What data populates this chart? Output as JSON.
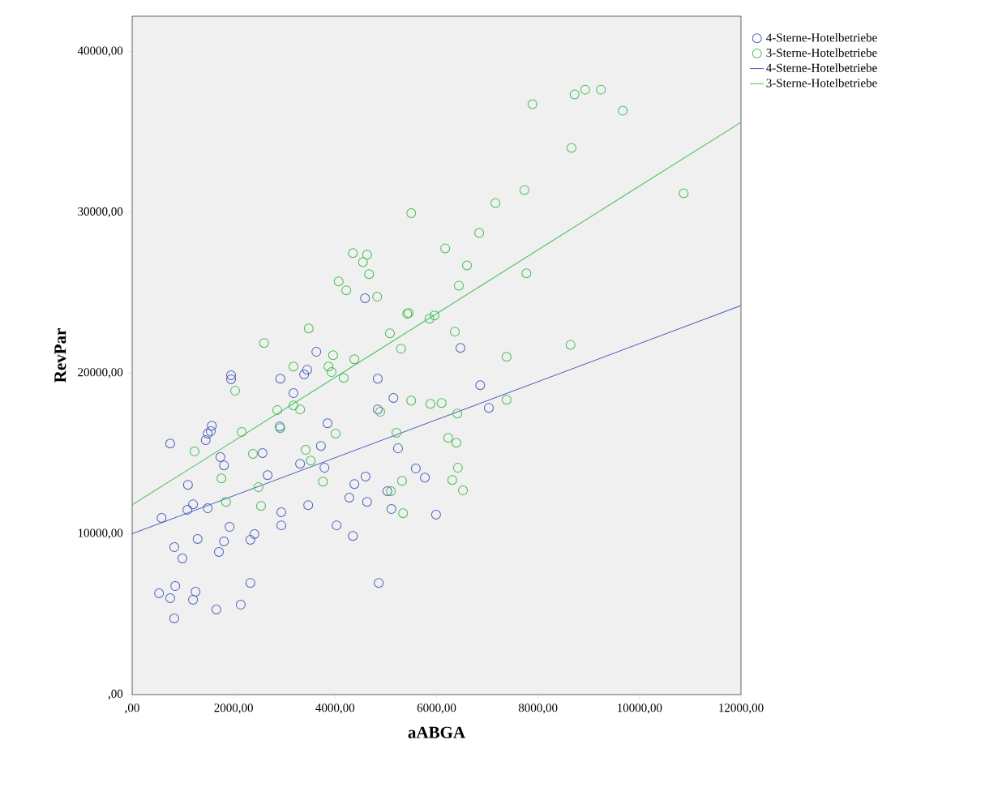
{
  "chart_data": {
    "type": "scatter",
    "xlabel": "aABGA",
    "ylabel": "RevPar",
    "xlim": [
      0,
      12000
    ],
    "ylim": [
      0,
      42200
    ],
    "xticks": [
      {
        "value": 0,
        "label": ",00"
      },
      {
        "value": 2000,
        "label": "2000,00"
      },
      {
        "value": 4000,
        "label": "4000,00"
      },
      {
        "value": 6000,
        "label": "6000,00"
      },
      {
        "value": 8000,
        "label": "8000,00"
      },
      {
        "value": 10000,
        "label": "10000,00"
      },
      {
        "value": 12000,
        "label": "12000,00"
      }
    ],
    "yticks": [
      {
        "value": 0,
        "label": ",00"
      },
      {
        "value": 10000,
        "label": "10000,00"
      },
      {
        "value": 20000,
        "label": "20000,00"
      },
      {
        "value": 30000,
        "label": "30000,00"
      },
      {
        "value": 40000,
        "label": "40000,00"
      }
    ],
    "marker": "circle",
    "legend": "right",
    "series": [
      {
        "name": "4-Sterne-Hotelbetriebe",
        "color": "#4a5ec0",
        "x": [
          3630,
          1950,
          1950,
          2920,
          3390,
          3450,
          3180,
          4840,
          5150,
          4840,
          1570,
          1550,
          1490,
          1450,
          750,
          2910,
          3850,
          2570,
          1740,
          1810,
          3720,
          5240,
          3310,
          3790,
          2670,
          5590,
          5770,
          1100,
          4600,
          4380,
          5030,
          1200,
          1090,
          1490,
          580,
          2940,
          4280,
          4630,
          3470,
          5110,
          5990,
          2940,
          1920,
          4030,
          4350,
          2410,
          2330,
          1810,
          1290,
          830,
          990,
          1710,
          2330,
          4860,
          530,
          850,
          750,
          1250,
          1200,
          1660,
          2140,
          830,
          6470,
          6860,
          7030,
          4590
        ],
        "values": [
          21320,
          19860,
          19610,
          19650,
          19910,
          20210,
          18750,
          19650,
          18450,
          17740,
          16730,
          16380,
          16230,
          15830,
          15620,
          16680,
          16880,
          15020,
          14770,
          14260,
          15470,
          15320,
          14360,
          14110,
          13650,
          14060,
          13500,
          13050,
          13560,
          13100,
          12650,
          11840,
          11490,
          11590,
          10990,
          11340,
          12250,
          11990,
          11790,
          11540,
          11190,
          10530,
          10430,
          10530,
          9870,
          9980,
          9630,
          9530,
          9680,
          9170,
          8470,
          8870,
          6950,
          6950,
          6300,
          6750,
          6000,
          6400,
          5900,
          5290,
          5590,
          4740,
          21570,
          19250,
          17840,
          24650
        ]
      },
      {
        "name": "3-Sterne-Hotelbetriebe",
        "color": "#3fbf4f",
        "x": [
          3480,
          2600,
          5080,
          5300,
          3960,
          3870,
          3930,
          4380,
          3180,
          4170,
          2030,
          2860,
          3180,
          3310,
          5500,
          5880,
          4890,
          2920,
          2160,
          4010,
          5210,
          1230,
          2380,
          3420,
          3520,
          1760,
          2490,
          3760,
          5320,
          5100,
          5340,
          1850,
          2540,
          6840,
          6170,
          6600,
          6440,
          7770,
          4350,
          4630,
          4550,
          4670,
          4070,
          4220,
          4830,
          5450,
          5420,
          5860,
          5960,
          6360,
          7380,
          6100,
          6410,
          7380,
          6230,
          6390,
          6420,
          6310,
          6520,
          7890,
          8720,
          8930,
          9240,
          9670,
          8660,
          7730,
          7160,
          10870,
          8640,
          5500
        ],
        "values": [
          22780,
          21870,
          22470,
          21510,
          21110,
          20410,
          20060,
          20860,
          20410,
          19700,
          18900,
          17690,
          17990,
          17740,
          18290,
          18090,
          17590,
          16580,
          16330,
          16230,
          16280,
          15120,
          14970,
          15220,
          14560,
          13450,
          12900,
          13250,
          13300,
          12650,
          11280,
          11990,
          11740,
          28720,
          27760,
          26700,
          25440,
          26200,
          27460,
          27360,
          26900,
          26150,
          25700,
          25150,
          24750,
          23730,
          23690,
          23380,
          23580,
          22580,
          21010,
          18140,
          17480,
          18340,
          15970,
          15670,
          14110,
          13350,
          12700,
          36730,
          37330,
          37630,
          37630,
          36320,
          34010,
          31390,
          30580,
          31180,
          21760,
          29950
        ]
      },
      {
        "name": "4-Sterne-Hotelbetriebe",
        "type": "line",
        "marker": "none",
        "color": "#4a5ec0",
        "x": [
          0,
          12000
        ],
        "values": [
          10000,
          24200
        ]
      },
      {
        "name": "3-Sterne-Hotelbetriebe",
        "type": "line",
        "marker": "none",
        "color": "#3fbf4f",
        "x": [
          0,
          12000
        ],
        "values": [
          11800,
          35600
        ]
      }
    ]
  }
}
